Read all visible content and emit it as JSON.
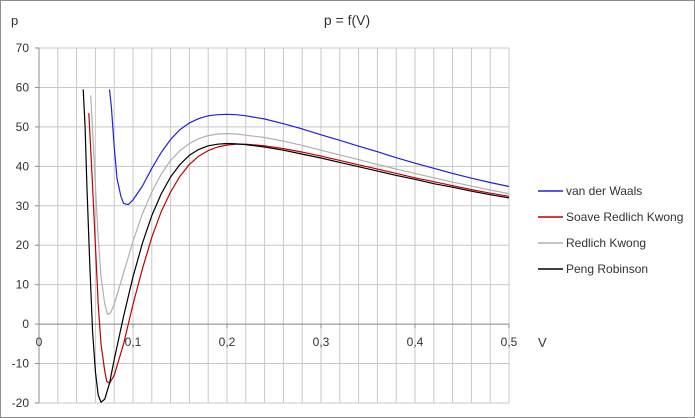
{
  "chart_data": {
    "type": "line",
    "title": "p = f(V)",
    "xlabel": "V",
    "ylabel": "p",
    "xlim": [
      0,
      0.5
    ],
    "ylim": [
      -20,
      70
    ],
    "x_ticks": [
      "0",
      "0,1",
      "0,2",
      "0,3",
      "0,4",
      "0,5"
    ],
    "y_ticks": [
      "-20",
      "-10",
      "0",
      "10",
      "20",
      "30",
      "40",
      "50",
      "60",
      "70"
    ],
    "grid": true,
    "legend_position": "right",
    "series": [
      {
        "name": "van der Waals",
        "color": "#2020e0",
        "points": [
          [
            0.075,
            59.5
          ],
          [
            0.077,
            55
          ],
          [
            0.08,
            45
          ],
          [
            0.083,
            37
          ],
          [
            0.087,
            32.5
          ],
          [
            0.09,
            30.6
          ],
          [
            0.095,
            30.3
          ],
          [
            0.1,
            31.5
          ],
          [
            0.11,
            35
          ],
          [
            0.12,
            39.5
          ],
          [
            0.13,
            43.5
          ],
          [
            0.14,
            46.8
          ],
          [
            0.15,
            49.3
          ],
          [
            0.16,
            51
          ],
          [
            0.17,
            52.1
          ],
          [
            0.18,
            52.8
          ],
          [
            0.19,
            53.1
          ],
          [
            0.2,
            53.2
          ],
          [
            0.21,
            53.1
          ],
          [
            0.22,
            52.8
          ],
          [
            0.24,
            52
          ],
          [
            0.26,
            50.8
          ],
          [
            0.28,
            49.5
          ],
          [
            0.3,
            48
          ],
          [
            0.32,
            46.6
          ],
          [
            0.34,
            45.1
          ],
          [
            0.36,
            43.7
          ],
          [
            0.38,
            42.2
          ],
          [
            0.4,
            40.8
          ],
          [
            0.42,
            39.5
          ],
          [
            0.44,
            38.2
          ],
          [
            0.46,
            37
          ],
          [
            0.48,
            35.9
          ],
          [
            0.5,
            34.9
          ]
        ]
      },
      {
        "name": "Soave Redlich Kwong",
        "color": "#c00000",
        "points": [
          [
            0.053,
            53.5
          ],
          [
            0.056,
            40
          ],
          [
            0.06,
            20
          ],
          [
            0.063,
            5
          ],
          [
            0.066,
            -5
          ],
          [
            0.07,
            -12
          ],
          [
            0.072,
            -14.5
          ],
          [
            0.075,
            -15
          ],
          [
            0.08,
            -13
          ],
          [
            0.09,
            -5
          ],
          [
            0.1,
            5
          ],
          [
            0.11,
            14
          ],
          [
            0.12,
            22
          ],
          [
            0.13,
            28.5
          ],
          [
            0.14,
            33.5
          ],
          [
            0.15,
            37.5
          ],
          [
            0.16,
            40.5
          ],
          [
            0.17,
            42.6
          ],
          [
            0.18,
            44
          ],
          [
            0.19,
            44.9
          ],
          [
            0.2,
            45.4
          ],
          [
            0.21,
            45.6
          ],
          [
            0.22,
            45.6
          ],
          [
            0.24,
            45.2
          ],
          [
            0.26,
            44.5
          ],
          [
            0.28,
            43.6
          ],
          [
            0.3,
            42.6
          ],
          [
            0.32,
            41.5
          ],
          [
            0.34,
            40.4
          ],
          [
            0.36,
            39.3
          ],
          [
            0.38,
            38.2
          ],
          [
            0.4,
            37.1
          ],
          [
            0.42,
            36.1
          ],
          [
            0.44,
            35.1
          ],
          [
            0.46,
            34.1
          ],
          [
            0.48,
            33.2
          ],
          [
            0.5,
            32.4
          ]
        ]
      },
      {
        "name": "Redlich Kwong",
        "color": "#b0b0b0",
        "points": [
          [
            0.055,
            58
          ],
          [
            0.058,
            45
          ],
          [
            0.06,
            35
          ],
          [
            0.063,
            22
          ],
          [
            0.066,
            12
          ],
          [
            0.07,
            5
          ],
          [
            0.073,
            2.5
          ],
          [
            0.076,
            2.8
          ],
          [
            0.08,
            5
          ],
          [
            0.09,
            13
          ],
          [
            0.1,
            21
          ],
          [
            0.11,
            28
          ],
          [
            0.12,
            33.5
          ],
          [
            0.13,
            38
          ],
          [
            0.14,
            41.5
          ],
          [
            0.15,
            44
          ],
          [
            0.16,
            45.8
          ],
          [
            0.17,
            47
          ],
          [
            0.18,
            47.8
          ],
          [
            0.19,
            48.2
          ],
          [
            0.2,
            48.3
          ],
          [
            0.21,
            48.2
          ],
          [
            0.22,
            47.9
          ],
          [
            0.24,
            47.3
          ],
          [
            0.26,
            46.4
          ],
          [
            0.28,
            45.3
          ],
          [
            0.3,
            44.1
          ],
          [
            0.32,
            42.9
          ],
          [
            0.34,
            41.7
          ],
          [
            0.36,
            40.5
          ],
          [
            0.38,
            39.3
          ],
          [
            0.4,
            38.2
          ],
          [
            0.42,
            37.1
          ],
          [
            0.44,
            36
          ],
          [
            0.46,
            35
          ],
          [
            0.48,
            34
          ],
          [
            0.5,
            33.1
          ]
        ]
      },
      {
        "name": "Peng Robinson",
        "color": "#000000",
        "points": [
          [
            0.047,
            59.5
          ],
          [
            0.049,
            50
          ],
          [
            0.051,
            35
          ],
          [
            0.054,
            15
          ],
          [
            0.057,
            -2
          ],
          [
            0.06,
            -12
          ],
          [
            0.063,
            -18
          ],
          [
            0.066,
            -19.8
          ],
          [
            0.07,
            -19
          ],
          [
            0.075,
            -15
          ],
          [
            0.08,
            -9
          ],
          [
            0.09,
            2
          ],
          [
            0.1,
            12
          ],
          [
            0.11,
            20.5
          ],
          [
            0.12,
            27.5
          ],
          [
            0.13,
            33
          ],
          [
            0.14,
            37.3
          ],
          [
            0.15,
            40.5
          ],
          [
            0.16,
            42.8
          ],
          [
            0.17,
            44.3
          ],
          [
            0.18,
            45.2
          ],
          [
            0.19,
            45.6
          ],
          [
            0.2,
            45.8
          ],
          [
            0.21,
            45.7
          ],
          [
            0.22,
            45.5
          ],
          [
            0.24,
            44.9
          ],
          [
            0.26,
            44.1
          ],
          [
            0.28,
            43.1
          ],
          [
            0.3,
            42.1
          ],
          [
            0.32,
            41
          ],
          [
            0.34,
            39.9
          ],
          [
            0.36,
            38.8
          ],
          [
            0.38,
            37.7
          ],
          [
            0.4,
            36.7
          ],
          [
            0.42,
            35.6
          ],
          [
            0.44,
            34.7
          ],
          [
            0.46,
            33.7
          ],
          [
            0.48,
            32.8
          ],
          [
            0.5,
            32
          ]
        ]
      }
    ]
  }
}
